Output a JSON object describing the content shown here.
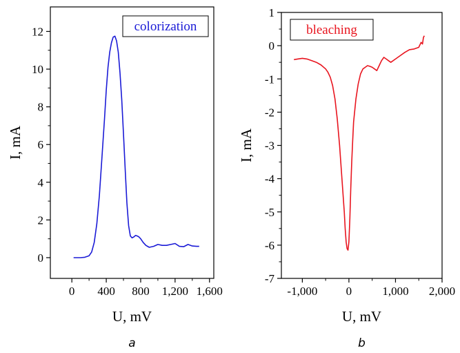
{
  "chart_data": [
    {
      "type": "line",
      "panel_label": "a",
      "xlabel": "U, mV",
      "ylabel": "I, mA",
      "xlim": [
        -250,
        1650
      ],
      "ylim": [
        -1.1,
        13.3
      ],
      "xticks": [
        0,
        400,
        800,
        1200,
        1600
      ],
      "xtick_labels": [
        "0",
        "400",
        "800",
        "1,200",
        "1,600"
      ],
      "yticks": [
        0,
        2,
        4,
        6,
        8,
        10,
        12
      ],
      "ytick_labels": [
        "0",
        "2",
        "4",
        "6",
        "8",
        "10",
        "12"
      ],
      "grid": false,
      "legend_position": "top-right",
      "series": [
        {
          "name": "colorization",
          "color": "#1a1ad6",
          "x": [
            20,
            100,
            150,
            200,
            230,
            260,
            290,
            320,
            350,
            380,
            400,
            420,
            440,
            460,
            480,
            500,
            520,
            540,
            560,
            580,
            600,
            620,
            640,
            660,
            680,
            700,
            720,
            740,
            760,
            780,
            800,
            830,
            860,
            900,
            950,
            1000,
            1050,
            1100,
            1150,
            1200,
            1250,
            1300,
            1350,
            1400,
            1450,
            1480
          ],
          "y": [
            0.0,
            0.0,
            0.02,
            0.1,
            0.3,
            0.8,
            1.8,
            3.3,
            5.3,
            7.4,
            8.9,
            10.1,
            10.9,
            11.4,
            11.7,
            11.75,
            11.5,
            10.9,
            9.8,
            8.4,
            6.6,
            4.7,
            2.9,
            1.7,
            1.15,
            1.05,
            1.1,
            1.18,
            1.15,
            1.1,
            1.0,
            0.8,
            0.65,
            0.55,
            0.6,
            0.7,
            0.65,
            0.65,
            0.7,
            0.75,
            0.6,
            0.58,
            0.7,
            0.62,
            0.6,
            0.6
          ]
        }
      ]
    },
    {
      "type": "line",
      "panel_label": "b",
      "xlabel": "U, mV",
      "ylabel": "I, mA",
      "xlim": [
        -1450,
        2000
      ],
      "ylim": [
        -7,
        1
      ],
      "xticks": [
        -1000,
        0,
        1000,
        2000
      ],
      "xtick_labels": [
        "-1,000",
        "0",
        "1,000",
        "2,000"
      ],
      "yticks": [
        1,
        0,
        -1,
        -2,
        -3,
        -4,
        -5,
        -6,
        -7
      ],
      "ytick_labels": [
        "1",
        "0",
        "-1",
        "-2",
        "-3",
        "-4",
        "-5",
        "-6",
        "-7"
      ],
      "grid": false,
      "legend_position": "top-left",
      "series": [
        {
          "name": "bleaching",
          "color": "#e8141e",
          "x": [
            -1180,
            -1100,
            -1000,
            -900,
            -800,
            -700,
            -600,
            -500,
            -450,
            -400,
            -350,
            -300,
            -250,
            -200,
            -150,
            -100,
            -80,
            -60,
            -40,
            -20,
            0,
            20,
            40,
            60,
            80,
            100,
            150,
            200,
            250,
            300,
            350,
            400,
            450,
            500,
            550,
            600,
            650,
            700,
            750,
            800,
            850,
            900,
            1000,
            1100,
            1200,
            1300,
            1400,
            1500,
            1550,
            1580,
            1600,
            1620
          ],
          "y": [
            -0.42,
            -0.4,
            -0.38,
            -0.4,
            -0.45,
            -0.5,
            -0.58,
            -0.7,
            -0.8,
            -0.95,
            -1.2,
            -1.6,
            -2.2,
            -3.0,
            -4.0,
            -5.0,
            -5.5,
            -5.9,
            -6.1,
            -6.15,
            -5.9,
            -5.2,
            -4.3,
            -3.5,
            -2.9,
            -2.3,
            -1.6,
            -1.15,
            -0.85,
            -0.7,
            -0.65,
            -0.6,
            -0.62,
            -0.65,
            -0.7,
            -0.75,
            -0.6,
            -0.45,
            -0.35,
            -0.4,
            -0.45,
            -0.5,
            -0.4,
            -0.3,
            -0.2,
            -0.12,
            -0.1,
            -0.05,
            0.1,
            0.05,
            0.25,
            0.3
          ]
        }
      ]
    }
  ]
}
